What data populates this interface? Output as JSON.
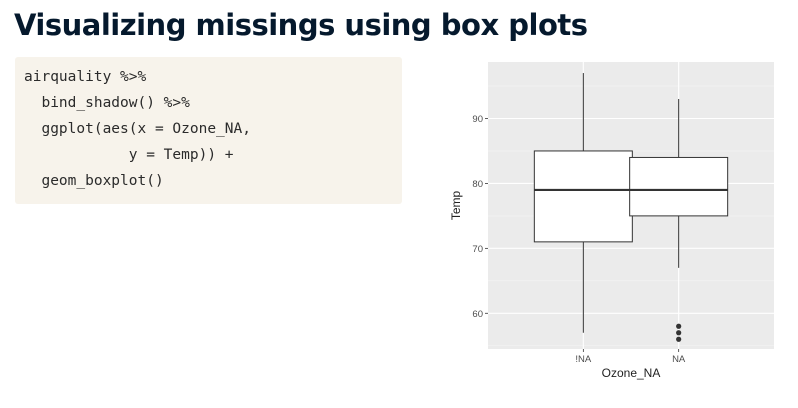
{
  "slide": {
    "title": "Visualizing missings using box plots"
  },
  "code": {
    "lines": [
      "airquality %>%",
      "  bind_shadow() %>%",
      "  ggplot(aes(x = Ozone_NA,",
      "            y = Temp)) +",
      "  geom_boxplot()"
    ]
  },
  "colors": {
    "title": "#05192d",
    "code_bg": "#f7f3eb",
    "panel_bg": "#ebebeb",
    "grid": "#ffffff"
  },
  "chart_data": {
    "type": "boxplot",
    "xlabel": "Ozone_NA",
    "ylabel": "Temp",
    "categories": [
      "!NA",
      "NA"
    ],
    "ylim": [
      54.5,
      98.7
    ],
    "yticks": [
      60,
      70,
      80,
      90
    ],
    "grid": true,
    "boxes": [
      {
        "category": "!NA",
        "lower_whisker": 57,
        "q1": 71,
        "median": 79,
        "q3": 85,
        "upper_whisker": 97,
        "outliers": []
      },
      {
        "category": "NA",
        "lower_whisker": 67,
        "q1": 75,
        "median": 79,
        "q3": 84,
        "upper_whisker": 93,
        "outliers": [
          56,
          57,
          58
        ]
      }
    ]
  }
}
